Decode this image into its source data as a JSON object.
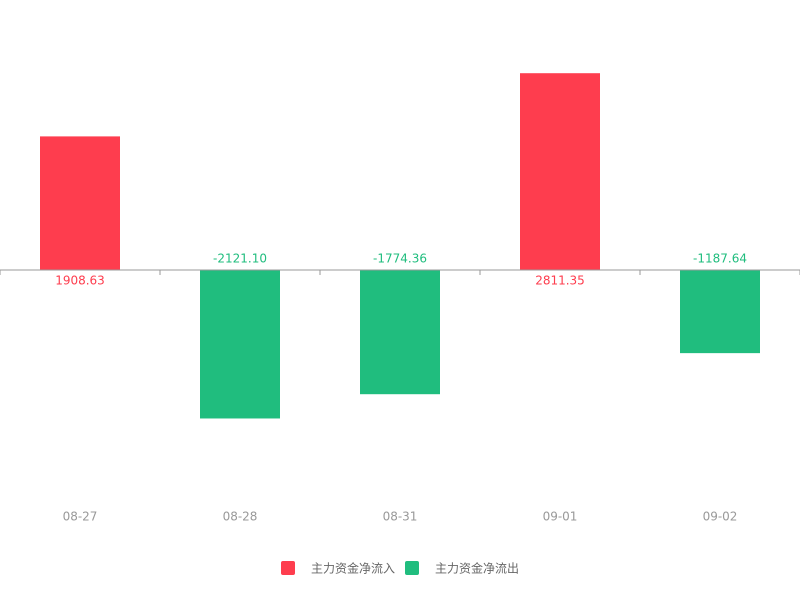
{
  "chart_data": {
    "type": "bar",
    "categories": [
      "08-27",
      "08-28",
      "08-31",
      "09-01",
      "09-02"
    ],
    "series": [
      {
        "name": "主力资金净流入",
        "color": "#fe3d4e",
        "values": [
          1908.63,
          null,
          null,
          2811.35,
          null
        ]
      },
      {
        "name": "主力资金净流出",
        "color": "#20bd7e",
        "values": [
          null,
          -2121.1,
          -1774.36,
          null,
          -1187.64
        ],
        "value_labels": [
          null,
          "-2121.10",
          "-1774.36",
          null,
          "-1187.64"
        ]
      }
    ],
    "ylim": [
      -3000,
      3000
    ],
    "legend": "bottom"
  }
}
